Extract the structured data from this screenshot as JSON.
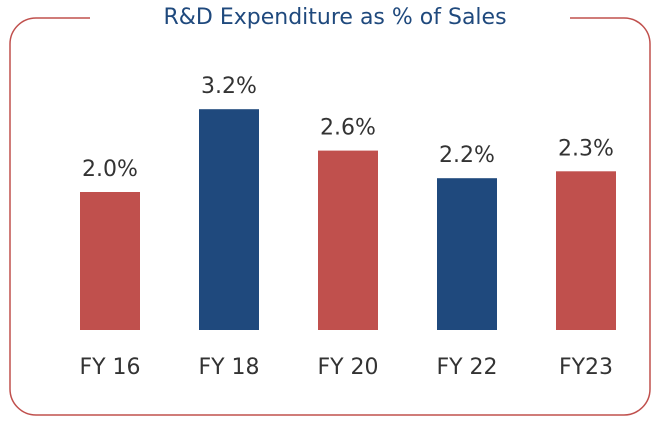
{
  "chart_data": {
    "type": "bar",
    "title": "R&D Expenditure as %  of Sales",
    "categories": [
      "FY 16",
      "FY 18",
      "FY 20",
      "FY 22",
      "FY23"
    ],
    "values": [
      2.0,
      3.2,
      2.6,
      2.2,
      2.3
    ],
    "value_labels": [
      "2.0%",
      "3.2%",
      "2.6%",
      "2.2%",
      "2.3%"
    ],
    "colors": [
      "#c0504d",
      "#1f497d",
      "#c0504d",
      "#1f497d",
      "#c0504d"
    ]
  }
}
